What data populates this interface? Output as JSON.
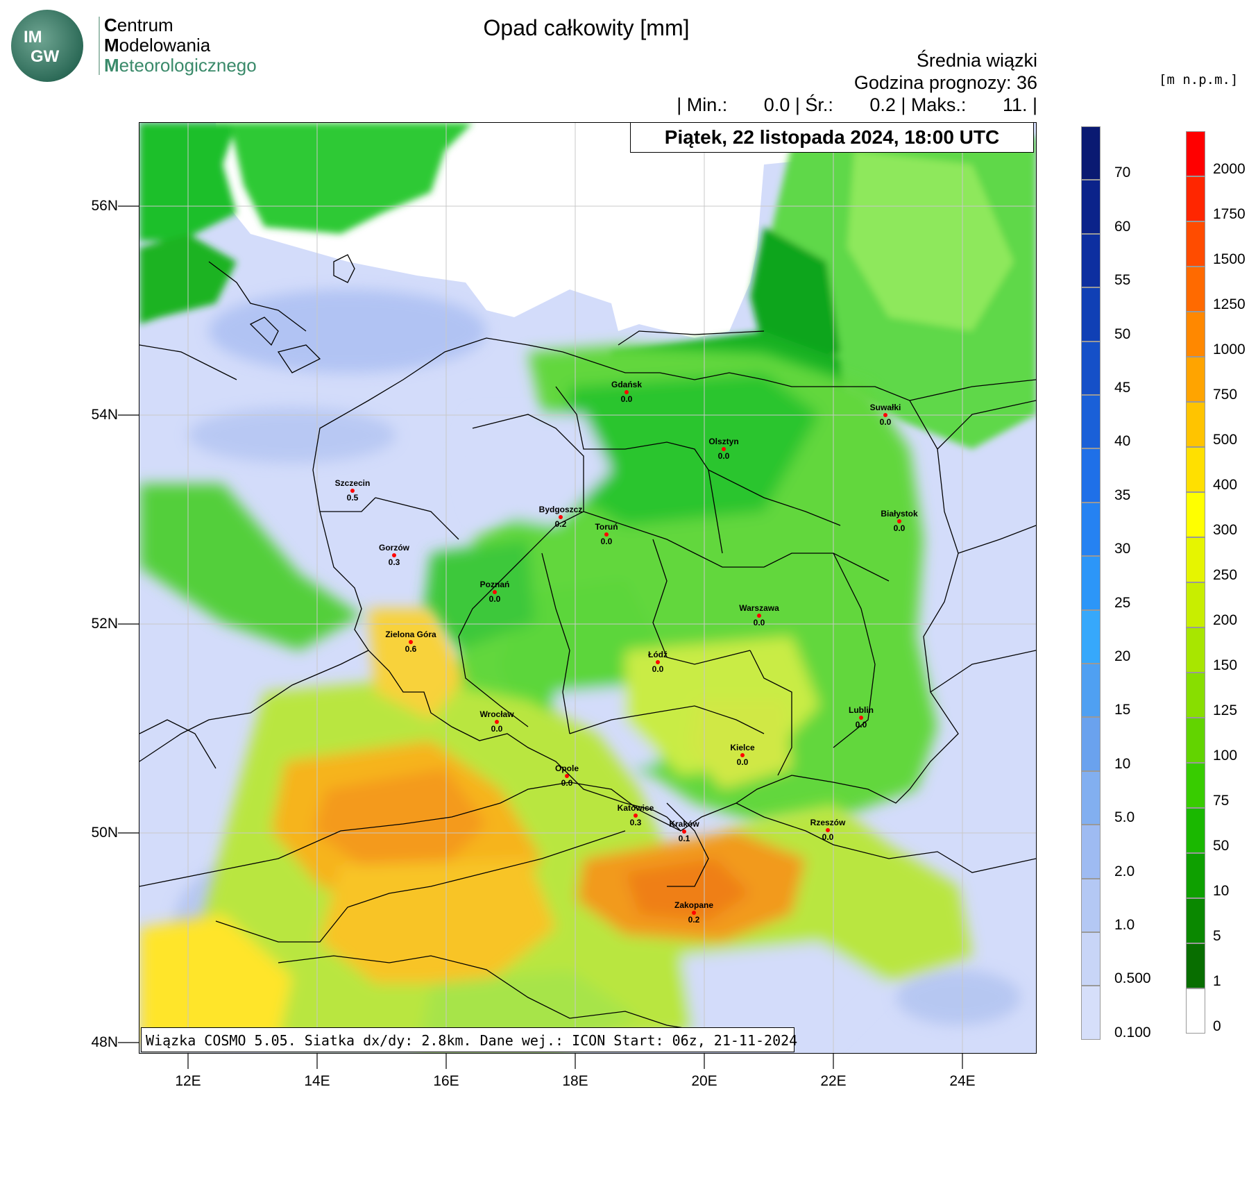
{
  "logo": {
    "line1_first": "C",
    "line1_rest": "entrum",
    "line2_first": "M",
    "line2_rest": "odelowania",
    "line3_first": "M",
    "line3_rest": "eteorologicznego",
    "badge": "IMGW"
  },
  "title": "Opad całkowity [mm]",
  "header": {
    "ensemble": "Średnia wiązki",
    "forecast_hour": "Godzina prognozy: 36",
    "stats": "| Min.:       0.0 | Śr.:       0.2 | Maks.:       11. |"
  },
  "date_label": "Piątek, 22 listopada 2024, 18:00 UTC",
  "footer": "Wiązka COSMO 5.05. Siatka dx/dy: 2.8km. Dane wej.: ICON Start: 06z, 21-11-2024",
  "axes": {
    "y_ticks": [
      "56N",
      "54N",
      "52N",
      "50N",
      "48N"
    ],
    "x_ticks": [
      "12E",
      "14E",
      "16E",
      "18E",
      "20E",
      "22E",
      "24E"
    ]
  },
  "precip_colorbar": {
    "labels": [
      "70",
      "60",
      "55",
      "50",
      "45",
      "40",
      "35",
      "30",
      "25",
      "20",
      "15",
      "10",
      "5.0",
      "2.0",
      "1.0",
      "0.500",
      "0.100"
    ],
    "colors": [
      "#0a1a72",
      "#0b238a",
      "#0d2fa0",
      "#1040b5",
      "#1550c8",
      "#1a60d8",
      "#1f70e8",
      "#2582f2",
      "#2c96f8",
      "#36a8fb",
      "#4fa0f2",
      "#6aa2ee",
      "#82aff0",
      "#9ebbf2",
      "#b4c8f4",
      "#c8d5f7",
      "#d6dffa"
    ]
  },
  "terrain_colorbar": {
    "unit": "[m n.p.m.]",
    "labels": [
      "2000",
      "1750",
      "1500",
      "1250",
      "1000",
      "750",
      "500",
      "400",
      "300",
      "250",
      "200",
      "150",
      "125",
      "100",
      "75",
      "50",
      "10",
      "5",
      "1",
      "0"
    ],
    "colors": [
      "#ff0000",
      "#ff2600",
      "#ff4c00",
      "#ff6a00",
      "#ff8800",
      "#ffa400",
      "#ffc400",
      "#ffe000",
      "#ffff00",
      "#e6f500",
      "#c8ee00",
      "#a8e600",
      "#88de00",
      "#62d400",
      "#38cc00",
      "#1ab800",
      "#0ea000",
      "#0a8800",
      "#086e00",
      "#ffffff"
    ]
  },
  "cities": [
    {
      "name": "Gdańsk",
      "value": "0.0"
    },
    {
      "name": "Suwałki",
      "value": "0.0"
    },
    {
      "name": "Olsztyn",
      "value": "0.0"
    },
    {
      "name": "Szczecin",
      "value": "0.5"
    },
    {
      "name": "Bydgoszcz",
      "value": "0.2"
    },
    {
      "name": "Toruń",
      "value": "0.0"
    },
    {
      "name": "Białystok",
      "value": "0.0"
    },
    {
      "name": "Gorzów",
      "value": "0.3"
    },
    {
      "name": "Poznań",
      "value": "0.0"
    },
    {
      "name": "Warszawa",
      "value": "0.0"
    },
    {
      "name": "Zielona Góra",
      "value": "0.6"
    },
    {
      "name": "Łódź",
      "value": "0.0"
    },
    {
      "name": "Lublin",
      "value": "0.0"
    },
    {
      "name": "Wrocław",
      "value": "0.0"
    },
    {
      "name": "Kielce",
      "value": "0.0"
    },
    {
      "name": "Opole",
      "value": "0.0"
    },
    {
      "name": "Katowice",
      "value": "0.3"
    },
    {
      "name": "Kraków",
      "value": "0.1"
    },
    {
      "name": "Rzeszów",
      "value": "0.0"
    },
    {
      "name": "Zakopane",
      "value": "0.2"
    }
  ]
}
